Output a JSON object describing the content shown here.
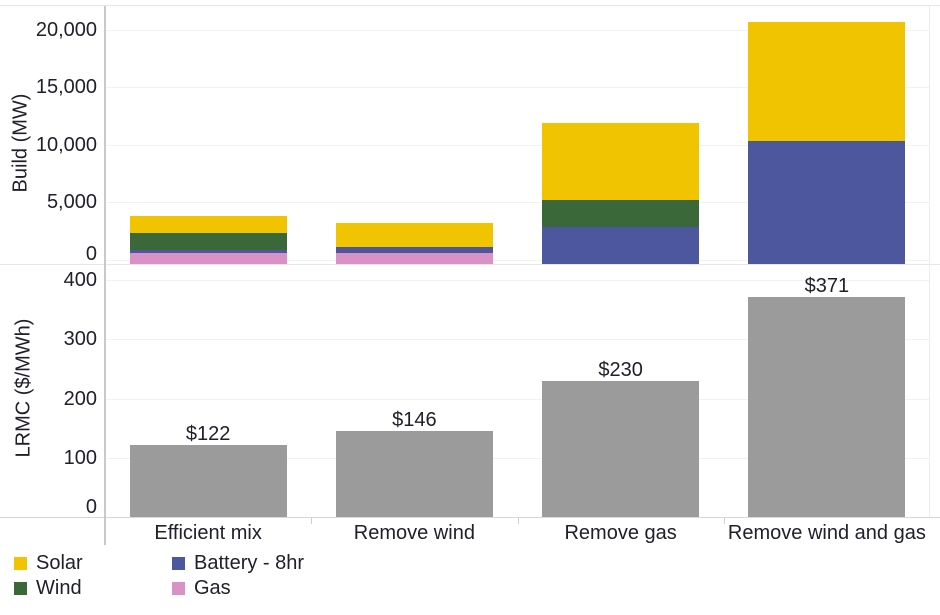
{
  "chart_data": {
    "type": "bar",
    "subtype": "two vertically-stacked panels sharing a categorical x-axis",
    "categories": [
      "Efficient mix",
      "Remove wind",
      "Remove gas",
      "Remove wind and gas"
    ],
    "panels": [
      {
        "id": "build",
        "kind": "stacked-bar",
        "ylabel": "Build (MW)",
        "ylim": [
          0,
          22000
        ],
        "yticks": [
          0,
          5000,
          10000,
          15000,
          20000
        ],
        "ytick_labels": [
          "0",
          "5,000",
          "10,000",
          "15,000",
          "20,000"
        ],
        "stack_order_bottom_to_top": [
          "Gas",
          "Battery - 8hr",
          "Wind",
          "Solar"
        ],
        "series": [
          {
            "name": "Gas",
            "color": "#D892C6",
            "values": [
              550,
              600,
              0,
              0
            ]
          },
          {
            "name": "Battery - 8hr",
            "color": "#4D579D",
            "values": [
              300,
              500,
              2850,
              10350
            ]
          },
          {
            "name": "Wind",
            "color": "#3A6839",
            "values": [
              1450,
              0,
              2350,
              0
            ]
          },
          {
            "name": "Solar",
            "color": "#F1C400",
            "values": [
              1450,
              2100,
              6700,
              10350
            ]
          }
        ]
      },
      {
        "id": "lrmc",
        "kind": "bar",
        "ylabel": "LRMC ($/MWh)",
        "ylim": [
          0,
          425
        ],
        "yticks": [
          0,
          100,
          200,
          300,
          400
        ],
        "ytick_labels": [
          "0",
          "100",
          "200",
          "300",
          "400"
        ],
        "values": [
          122,
          146,
          230,
          371
        ],
        "bar_labels": [
          "$122",
          "$146",
          "$230",
          "$371"
        ],
        "bar_color": "#9B9B9B"
      }
    ],
    "legend": {
      "position": "bottom-left",
      "columns": [
        [
          {
            "label": "Solar",
            "color": "#F1C400"
          },
          {
            "label": "Wind",
            "color": "#3A6839"
          }
        ],
        [
          {
            "label": "Battery - 8hr",
            "color": "#4D579D"
          },
          {
            "label": "Gas",
            "color": "#D892C6"
          }
        ]
      ]
    },
    "grid": true,
    "colors": {
      "text": "#20202A",
      "gridline": "#F2F2F2",
      "axis_line_y": "#C9C9C9",
      "axis_line_x": "#D8D8D8",
      "rule": "#E7E7E7",
      "right_border": "#EDEDED",
      "boundary_tick": "#CFCFCF"
    }
  }
}
